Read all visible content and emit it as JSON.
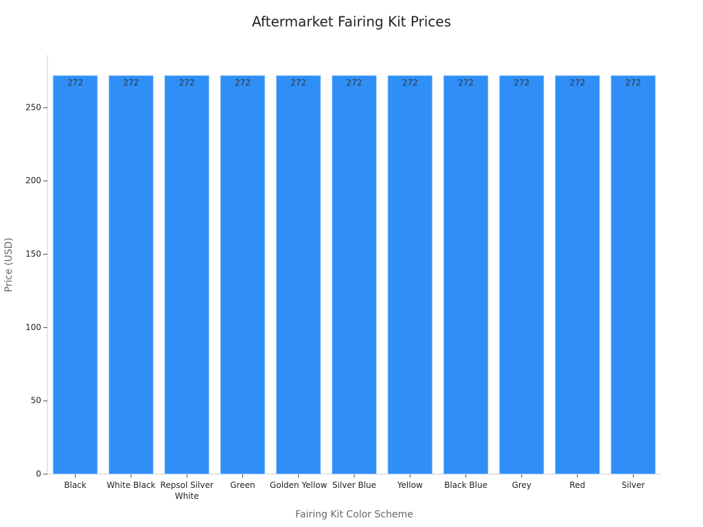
{
  "chart_data": {
    "type": "bar",
    "title": "Aftermarket Fairing Kit Prices",
    "x_label": "Fairing Kit Color Scheme",
    "y_label": "Price (USD)",
    "categories": [
      "Black",
      "White Black",
      "Repsol Silver White",
      "Green",
      "Golden Yellow",
      "Silver Blue",
      "Yellow",
      "Black Blue",
      "Grey",
      "Red",
      "Silver"
    ],
    "values": [
      272,
      272,
      272,
      272,
      272,
      272,
      272,
      272,
      272,
      272,
      272
    ],
    "color": "#2f8ff7",
    "ylim": [
      0,
      286
    ],
    "yticks": [
      0,
      50,
      100,
      150,
      200,
      250
    ],
    "grid": false
  }
}
